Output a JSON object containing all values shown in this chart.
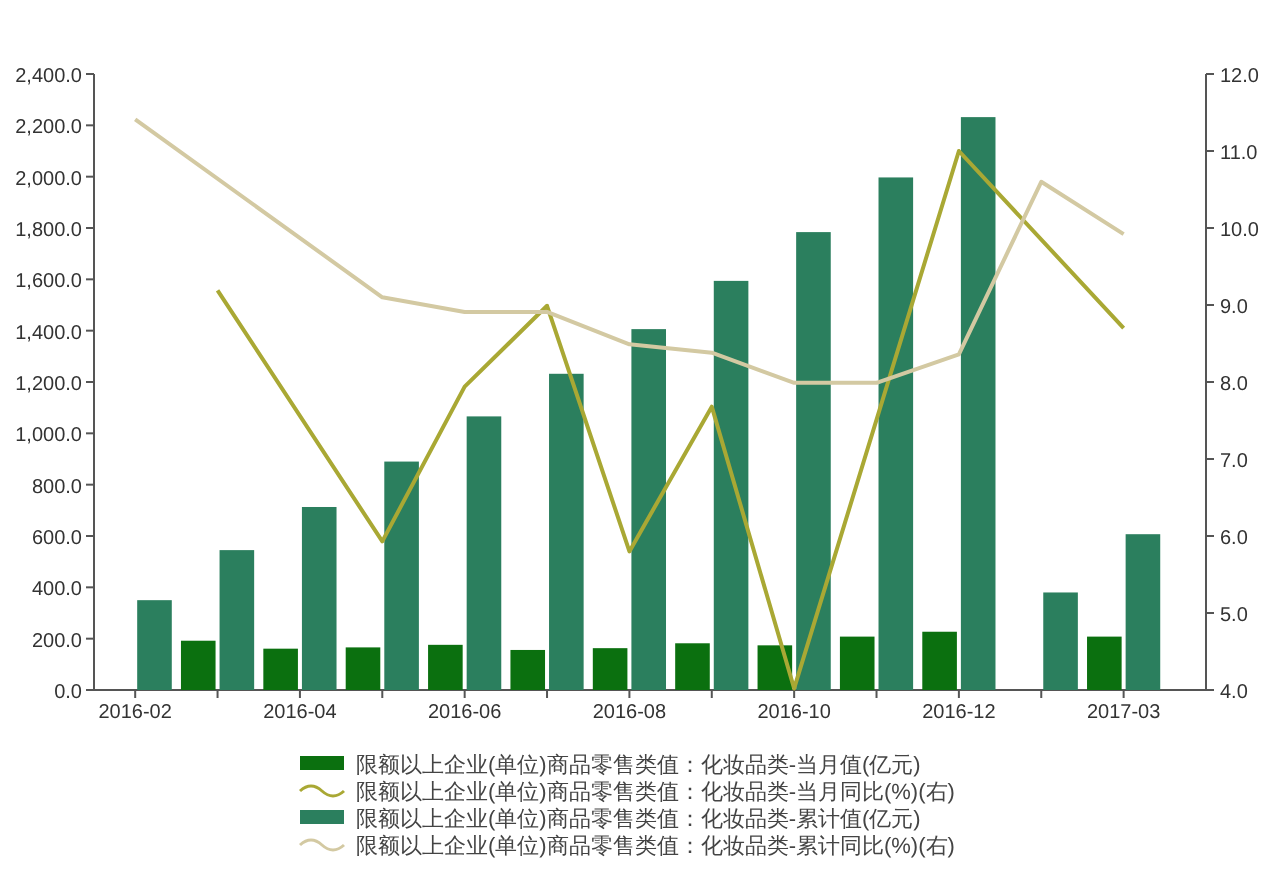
{
  "chart_data": {
    "type": "bar",
    "categories": [
      "2016-02",
      null,
      "2016-04",
      null,
      "2016-06",
      null,
      "2016-08",
      null,
      "2016-10",
      null,
      "2016-12",
      null,
      "2017-03"
    ],
    "series": [
      {
        "name": "限额以上企业(单位)商品零售类值：化妆品类-当月值(亿元)",
        "color": "#0b700f",
        "values": [
          null,
          192,
          161,
          166,
          176,
          156,
          163,
          182,
          174,
          208,
          227,
          null,
          208
        ]
      },
      {
        "name": "限额以上企业(单位)商品零售类值：化妆品类-当月同比(%)(右)",
        "type": "line",
        "axis": "y2",
        "color": "#a9a834",
        "values": [
          null,
          9.19,
          null,
          5.93,
          7.94,
          8.99,
          5.8,
          7.68,
          4.02,
          null,
          11.0,
          null,
          8.7
        ]
      },
      {
        "name": "限额以上企业(单位)商品零售类值：化妆品类-累计值(亿元)",
        "color": "#2b7f5e",
        "values": [
          350,
          545,
          713,
          890,
          1066,
          1232,
          1406,
          1594,
          1784,
          1997,
          2232,
          380,
          607
        ]
      },
      {
        "name": "限额以上企业(单位)商品零售类值：化妆品类-累计同比(%)(右)",
        "type": "line",
        "axis": "y2",
        "color": "#d3c9a2",
        "values": [
          11.41,
          null,
          null,
          9.1,
          8.91,
          8.91,
          8.49,
          8.38,
          7.99,
          7.99,
          8.36,
          10.6,
          9.92
        ]
      }
    ],
    "ylim": [
      0,
      2400
    ],
    "yticks": [
      {
        "value": 0,
        "label": "0.0"
      },
      {
        "value": 200,
        "label": "200.0"
      },
      {
        "value": 400,
        "label": "400.0"
      },
      {
        "value": 600,
        "label": "600.0"
      },
      {
        "value": 800,
        "label": "800.0"
      },
      {
        "value": 1000,
        "label": "1,000.0"
      },
      {
        "value": 1200,
        "label": "1,200.0"
      },
      {
        "value": 1400,
        "label": "1,400.0"
      },
      {
        "value": 1600,
        "label": "1,600.0"
      },
      {
        "value": 1800,
        "label": "1,800.0"
      },
      {
        "value": 2000,
        "label": "2,000.0"
      },
      {
        "value": 2200,
        "label": "2,200.0"
      },
      {
        "value": 2400,
        "label": "2,400.0"
      }
    ],
    "y2lim": [
      4,
      12
    ],
    "y2ticks": [
      {
        "value": 4,
        "label": "4.0"
      },
      {
        "value": 5,
        "label": "5.0"
      },
      {
        "value": 6,
        "label": "6.0"
      },
      {
        "value": 7,
        "label": "7.0"
      },
      {
        "value": 8,
        "label": "8.0"
      },
      {
        "value": 9,
        "label": "9.0"
      },
      {
        "value": 10,
        "label": "10.0"
      },
      {
        "value": 11,
        "label": "11.0"
      },
      {
        "value": 12,
        "label": "12.0"
      }
    ],
    "legend": "bottom",
    "grid": false
  }
}
